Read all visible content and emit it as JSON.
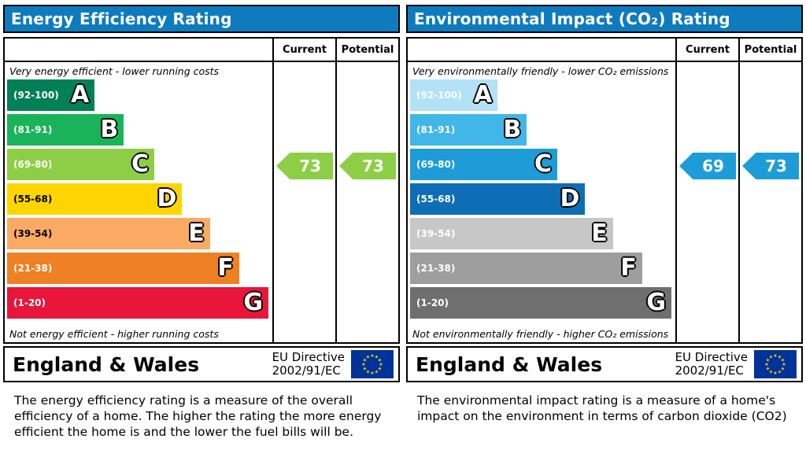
{
  "panels": [
    {
      "title": "Energy Efficiency Rating",
      "header_color": "#0f7bbf",
      "col_current": "Current",
      "col_potential": "Potential",
      "top_note": "Very energy efficient - lower running costs",
      "bottom_note": "Not energy efficient - higher running costs",
      "bands": [
        {
          "letter": "A",
          "range": "(92-100)",
          "color": "#008054",
          "width": "33%",
          "text": "#ffffff"
        },
        {
          "letter": "B",
          "range": "(81-91)",
          "color": "#19b459",
          "width": "44%",
          "text": "#ffffff"
        },
        {
          "letter": "C",
          "range": "(69-80)",
          "color": "#8dce46",
          "width": "55.5%",
          "text": "#ffffff"
        },
        {
          "letter": "D",
          "range": "(55-68)",
          "color": "#ffd500",
          "width": "66%",
          "text": "#000000"
        },
        {
          "letter": "E",
          "range": "(39-54)",
          "color": "#fbaa65",
          "width": "76.5%",
          "text": "#000000"
        },
        {
          "letter": "F",
          "range": "(21-38)",
          "color": "#ef8023",
          "width": "87.5%",
          "text": "#ffffff"
        },
        {
          "letter": "G",
          "range": "(1-20)",
          "color": "#e9153b",
          "width": "98.5%",
          "text": "#ffffff"
        }
      ],
      "current": {
        "value": "73",
        "band": "C",
        "color": "#8dce46"
      },
      "potential": {
        "value": "73",
        "band": "C",
        "color": "#8dce46"
      },
      "footer": {
        "region": "England & Wales",
        "directive1": "EU Directive",
        "directive2": "2002/91/EC"
      },
      "description": "The energy efficiency rating is a measure of the overall efficiency of a home.  The higher the rating the more energy efficient the home is and the lower the fuel bills will be."
    },
    {
      "title": "Environmental Impact (CO₂) Rating",
      "header_color": "#0f7bbf",
      "col_current": "Current",
      "col_potential": "Potential",
      "top_note": "Very environmentally friendly - lower CO₂ emissions",
      "bottom_note": "Not environmentally friendly - higher CO₂ emissions",
      "bands": [
        {
          "letter": "A",
          "range": "(92-100)",
          "color": "#b3e1f5",
          "width": "33%",
          "text": "#ffffff"
        },
        {
          "letter": "B",
          "range": "(81-91)",
          "color": "#41b6e9",
          "width": "44%",
          "text": "#ffffff"
        },
        {
          "letter": "C",
          "range": "(69-80)",
          "color": "#1e9cd8",
          "width": "55.5%",
          "text": "#ffffff"
        },
        {
          "letter": "D",
          "range": "(55-68)",
          "color": "#0e6eb5",
          "width": "66%",
          "text": "#ffffff"
        },
        {
          "letter": "E",
          "range": "(39-54)",
          "color": "#c7c7c7",
          "width": "76.5%",
          "text": "#ffffff"
        },
        {
          "letter": "F",
          "range": "(21-38)",
          "color": "#9e9e9e",
          "width": "87.5%",
          "text": "#ffffff"
        },
        {
          "letter": "G",
          "range": "(1-20)",
          "color": "#6f6f6f",
          "width": "98.5%",
          "text": "#ffffff"
        }
      ],
      "current": {
        "value": "69",
        "band": "C",
        "color": "#1e9cd8"
      },
      "potential": {
        "value": "73",
        "band": "C",
        "color": "#1e9cd8"
      },
      "footer": {
        "region": "England & Wales",
        "directive1": "EU Directive",
        "directive2": "2002/91/EC"
      },
      "description": "The environmental impact rating is a measure of a home's impact on the environment in terms of carbon dioxide (CO2)"
    }
  ],
  "chart_data": [
    {
      "type": "bar",
      "title": "Energy Efficiency Rating",
      "categories": [
        "A (92-100)",
        "B (81-91)",
        "C (69-80)",
        "D (55-68)",
        "E (39-54)",
        "F (21-38)",
        "G (1-20)"
      ],
      "series": [
        {
          "name": "Current",
          "values": [
            73
          ],
          "band": "C"
        },
        {
          "name": "Potential",
          "values": [
            73
          ],
          "band": "C"
        }
      ],
      "xlim": [
        1,
        100
      ],
      "annotations": [
        "Very energy efficient - lower running costs",
        "Not energy efficient - higher running costs",
        "England & Wales",
        "EU Directive 2002/91/EC"
      ]
    },
    {
      "type": "bar",
      "title": "Environmental Impact (CO₂) Rating",
      "categories": [
        "A (92-100)",
        "B (81-91)",
        "C (69-80)",
        "D (55-68)",
        "E (39-54)",
        "F (21-38)",
        "G (1-20)"
      ],
      "series": [
        {
          "name": "Current",
          "values": [
            69
          ],
          "band": "C"
        },
        {
          "name": "Potential",
          "values": [
            73
          ],
          "band": "C"
        }
      ],
      "xlim": [
        1,
        100
      ],
      "annotations": [
        "Very environmentally friendly - lower CO₂ emissions",
        "Not environmentally friendly - higher CO₂ emissions",
        "England & Wales",
        "EU Directive 2002/91/EC"
      ]
    }
  ]
}
